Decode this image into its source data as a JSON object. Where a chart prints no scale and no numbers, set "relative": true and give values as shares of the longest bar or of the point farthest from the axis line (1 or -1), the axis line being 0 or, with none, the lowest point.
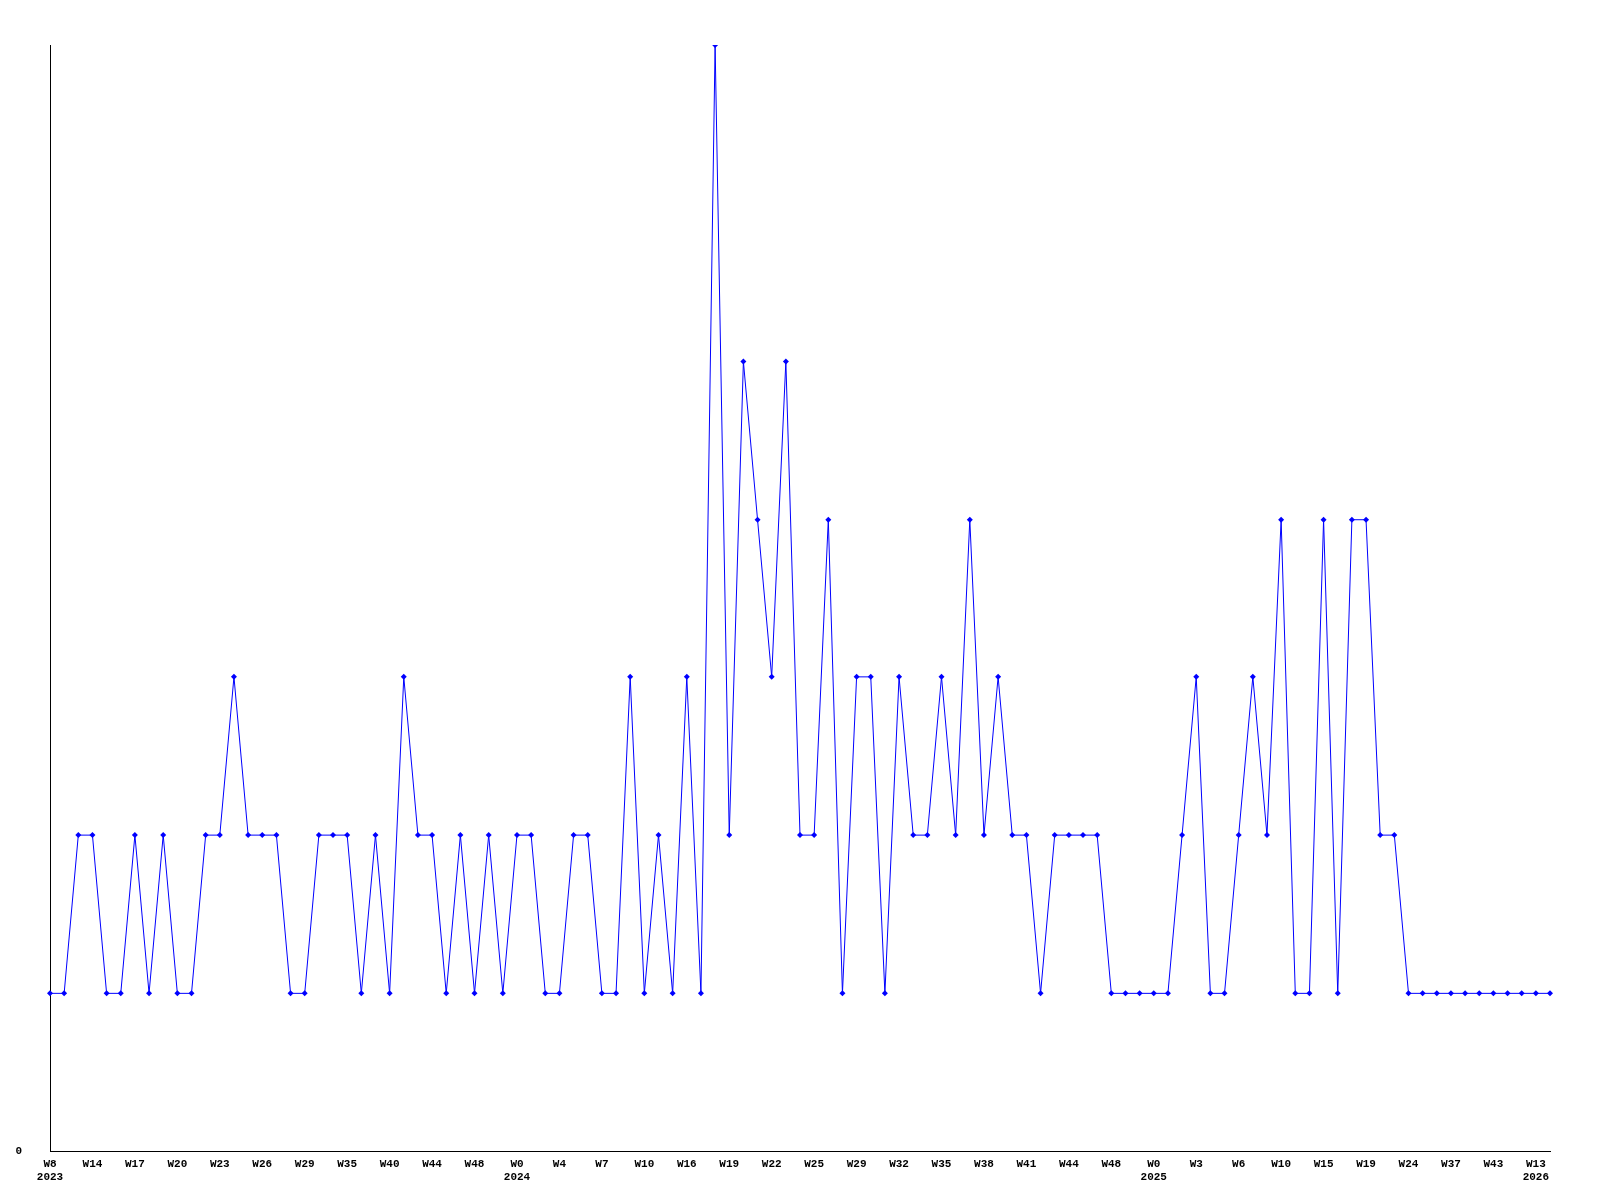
{
  "chart_data": {
    "type": "line",
    "relative": true,
    "color": "#0000ff",
    "marker": "diamond",
    "grid": false,
    "legend": false,
    "annotations": [
      "0"
    ],
    "categories": [
      "W8\n2023",
      null,
      null,
      "W14",
      null,
      null,
      "W17",
      null,
      null,
      "W20",
      null,
      null,
      "W23",
      null,
      null,
      "W26",
      null,
      null,
      "W29",
      null,
      null,
      "W35",
      null,
      null,
      "W40",
      null,
      null,
      "W44",
      null,
      null,
      "W48",
      null,
      null,
      "W0\n2024",
      null,
      null,
      "W4",
      null,
      null,
      "W7",
      null,
      null,
      "W10",
      null,
      null,
      "W16",
      null,
      null,
      "W19",
      null,
      null,
      "W22",
      null,
      null,
      "W25",
      null,
      null,
      "W29",
      null,
      null,
      "W32",
      null,
      null,
      "W35",
      null,
      null,
      "W38",
      null,
      null,
      "W41",
      null,
      null,
      "W44",
      null,
      null,
      "W48",
      null,
      null,
      "W0\n2025",
      null,
      null,
      "W3",
      null,
      null,
      "W6",
      null,
      null,
      "W10",
      null,
      null,
      "W15",
      null,
      null,
      "W19",
      null,
      null,
      "W24",
      null,
      null,
      "W37",
      null,
      null,
      "W43",
      null,
      null,
      "W13\n2026",
      null
    ],
    "values": [
      0.143,
      0.143,
      0.286,
      0.286,
      0.143,
      0.143,
      0.286,
      0.143,
      0.286,
      0.143,
      0.143,
      0.286,
      0.286,
      0.429,
      0.286,
      0.286,
      0.286,
      0.143,
      0.143,
      0.286,
      0.286,
      0.286,
      0.143,
      0.286,
      0.143,
      0.429,
      0.286,
      0.286,
      0.143,
      0.286,
      0.143,
      0.286,
      0.143,
      0.286,
      0.286,
      0.143,
      0.143,
      0.286,
      0.286,
      0.143,
      0.143,
      0.429,
      0.143,
      0.286,
      0.143,
      0.429,
      0.143,
      1,
      0.286,
      0.714,
      0.571,
      0.429,
      0.714,
      0.286,
      0.286,
      0.571,
      0.143,
      0.429,
      0.429,
      0.143,
      0.429,
      0.286,
      0.286,
      0.429,
      0.286,
      0.571,
      0.286,
      0.429,
      0.286,
      0.286,
      0.143,
      0.286,
      0.286,
      0.286,
      0.286,
      0.143,
      0.143,
      0.143,
      0.143,
      0.143,
      0.286,
      0.429,
      0.143,
      0.143,
      0.286,
      0.429,
      0.286,
      0.571,
      0.143,
      0.143,
      0.571,
      0.143,
      0.571,
      0.571,
      0.286,
      0.286,
      0.143,
      0.143,
      0.143,
      0.143,
      0.143,
      0.143,
      0.143,
      0.143,
      0.143,
      0.143,
      0.143
    ]
  }
}
